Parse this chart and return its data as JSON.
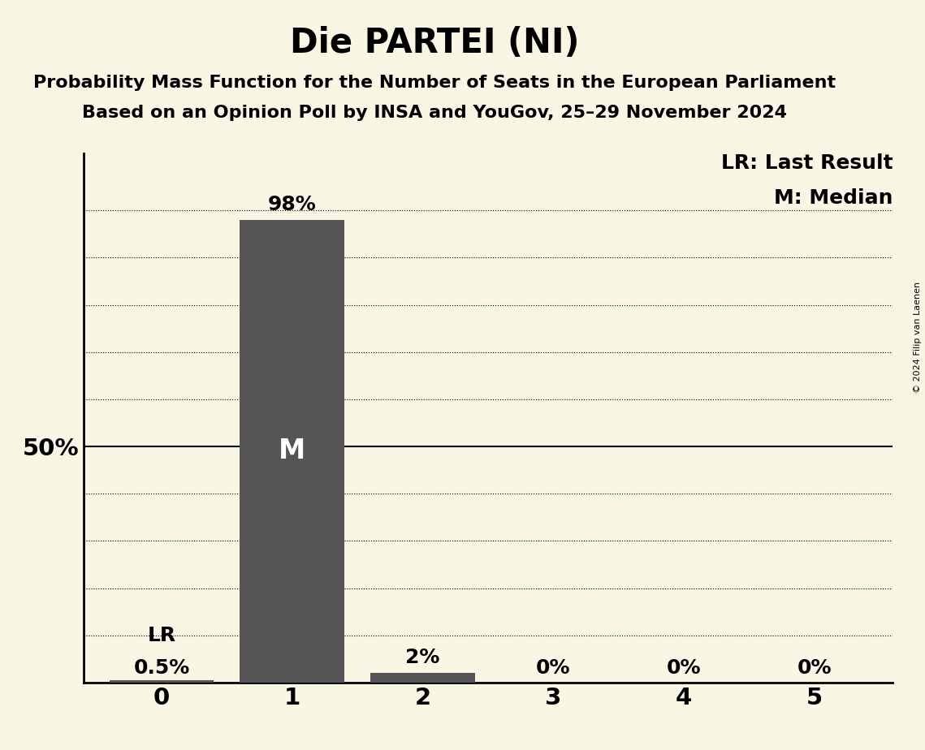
{
  "title": "Die PARTEI (NI)",
  "subtitle1": "Probability Mass Function for the Number of Seats in the European Parliament",
  "subtitle2": "Based on an Opinion Poll by INSA and YouGov, 25–29 November 2024",
  "copyright": "© 2024 Filip van Laenen",
  "categories": [
    0,
    1,
    2,
    3,
    4,
    5
  ],
  "values": [
    0.005,
    0.98,
    0.02,
    0.0,
    0.0,
    0.0
  ],
  "bar_color": "#555555",
  "bg_color": "#faf6e4",
  "bar_labels": [
    "0.5%",
    "98%",
    "2%",
    "0%",
    "0%",
    "0%"
  ],
  "median_label": "M",
  "lr_label": "LR",
  "legend_lr": "LR: Last Result",
  "legend_m": "M: Median",
  "y50_label": "50%",
  "ylim_max": 1.12,
  "title_fontsize": 30,
  "subtitle_fontsize": 16,
  "label_fontsize": 18,
  "tick_fontsize": 21,
  "legend_fontsize": 18,
  "copyright_fontsize": 8
}
